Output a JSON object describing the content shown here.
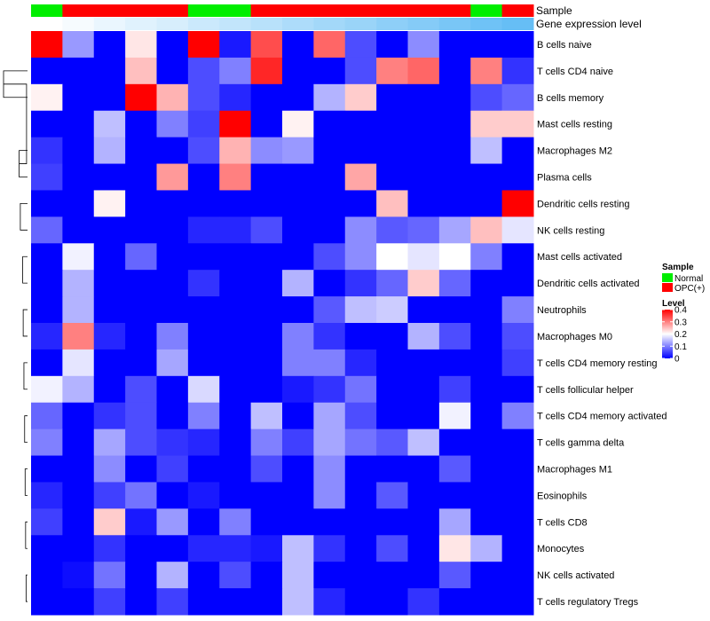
{
  "chart_data": {
    "type": "heatmap",
    "title": "",
    "columns": 16,
    "rows": [
      "B cells naive",
      "T cells CD4 naive",
      "B cells memory",
      "Mast cells resting",
      "Macrophages M2",
      "Plasma cells",
      "Dendritic cells resting",
      "NK cells resting",
      "Mast cells activated",
      "Dendritic cells activated",
      "Neutrophils",
      "Macrophages M0",
      "T cells CD4 memory resting",
      "T cells follicular helper",
      "T cells CD4 memory activated",
      "T cells gamma delta",
      "Macrophages M1",
      "Eosinophils",
      "T cells CD8",
      "Monocytes",
      "NK cells activated",
      "T cells regulatory  Tregs"
    ],
    "values": [
      [
        0.4,
        0.12,
        0.0,
        0.22,
        0.0,
        0.4,
        0.02,
        0.34,
        0.0,
        0.32,
        0.06,
        0.0,
        0.11,
        0.0,
        0.0,
        0.0
      ],
      [
        0.0,
        0.0,
        0.0,
        0.25,
        0.0,
        0.06,
        0.1,
        0.37,
        0.0,
        0.0,
        0.06,
        0.3,
        0.32,
        0.0,
        0.3,
        0.04
      ],
      [
        0.21,
        0.0,
        0.0,
        0.4,
        0.26,
        0.06,
        0.03,
        0.0,
        0.0,
        0.14,
        0.24,
        0.0,
        0.0,
        0.0,
        0.06,
        0.08
      ],
      [
        0.0,
        0.0,
        0.15,
        0.0,
        0.1,
        0.05,
        0.4,
        0.0,
        0.21,
        0.0,
        0.0,
        0.0,
        0.0,
        0.0,
        0.24,
        0.24
      ],
      [
        0.04,
        0.0,
        0.14,
        0.0,
        0.0,
        0.06,
        0.26,
        0.11,
        0.12,
        0.0,
        0.0,
        0.0,
        0.0,
        0.0,
        0.15,
        0.0
      ],
      [
        0.05,
        0.0,
        0.0,
        0.0,
        0.28,
        0.0,
        0.3,
        0.0,
        0.0,
        0.0,
        0.27,
        0.0,
        0.0,
        0.0,
        0.0,
        0.0
      ],
      [
        0.0,
        0.0,
        0.21,
        0.0,
        0.0,
        0.0,
        0.0,
        0.0,
        0.0,
        0.0,
        0.0,
        0.25,
        0.0,
        0.0,
        0.0,
        0.4
      ],
      [
        0.08,
        0.0,
        0.0,
        0.0,
        0.0,
        0.03,
        0.03,
        0.06,
        0.0,
        0.0,
        0.11,
        0.07,
        0.08,
        0.13,
        0.25,
        0.18
      ],
      [
        0.0,
        0.19,
        0.0,
        0.08,
        0.0,
        0.0,
        0.0,
        0.0,
        0.0,
        0.06,
        0.11,
        0.2,
        0.18,
        0.2,
        0.1,
        0.0
      ],
      [
        0.0,
        0.14,
        0.0,
        0.0,
        0.0,
        0.04,
        0.0,
        0.0,
        0.14,
        0.0,
        0.04,
        0.08,
        0.24,
        0.08,
        0.0,
        0.0
      ],
      [
        0.0,
        0.14,
        0.0,
        0.0,
        0.0,
        0.0,
        0.0,
        0.0,
        0.0,
        0.07,
        0.15,
        0.16,
        0.0,
        0.0,
        0.0,
        0.1
      ],
      [
        0.03,
        0.3,
        0.03,
        0.0,
        0.1,
        0.0,
        0.0,
        0.0,
        0.1,
        0.04,
        0.0,
        0.0,
        0.14,
        0.06,
        0.0,
        0.06
      ],
      [
        0.0,
        0.18,
        0.0,
        0.0,
        0.13,
        0.0,
        0.0,
        0.0,
        0.1,
        0.1,
        0.03,
        0.0,
        0.0,
        0.0,
        0.0,
        0.05
      ],
      [
        0.19,
        0.14,
        0.0,
        0.06,
        0.0,
        0.17,
        0.0,
        0.0,
        0.02,
        0.04,
        0.09,
        0.0,
        0.0,
        0.05,
        0.0,
        0.0
      ],
      [
        0.08,
        0.0,
        0.04,
        0.06,
        0.0,
        0.1,
        0.0,
        0.15,
        0.0,
        0.13,
        0.06,
        0.0,
        0.0,
        0.19,
        0.0,
        0.1
      ],
      [
        0.1,
        0.0,
        0.13,
        0.06,
        0.04,
        0.03,
        0.0,
        0.1,
        0.05,
        0.13,
        0.09,
        0.07,
        0.15,
        0.0,
        0.0,
        0.0
      ],
      [
        0.0,
        0.0,
        0.11,
        0.0,
        0.05,
        0.0,
        0.0,
        0.06,
        0.0,
        0.11,
        0.0,
        0.0,
        0.0,
        0.07,
        0.0,
        0.0
      ],
      [
        0.03,
        0.0,
        0.05,
        0.09,
        0.0,
        0.02,
        0.0,
        0.0,
        0.0,
        0.11,
        0.0,
        0.07,
        0.0,
        0.0,
        0.0,
        0.0
      ],
      [
        0.05,
        0.0,
        0.24,
        0.02,
        0.12,
        0.0,
        0.1,
        0.0,
        0.0,
        0.0,
        0.0,
        0.0,
        0.0,
        0.13,
        0.0,
        0.0
      ],
      [
        0.0,
        0.0,
        0.04,
        0.0,
        0.0,
        0.03,
        0.03,
        0.02,
        0.15,
        0.04,
        0.0,
        0.06,
        0.0,
        0.22,
        0.14,
        0.0
      ],
      [
        0.0,
        0.01,
        0.09,
        0.0,
        0.14,
        0.0,
        0.06,
        0.0,
        0.15,
        0.0,
        0.0,
        0.0,
        0.0,
        0.07,
        0.0,
        0.0
      ],
      [
        0.0,
        0.0,
        0.05,
        0.0,
        0.05,
        0.0,
        0.0,
        0.0,
        0.15,
        0.03,
        0.0,
        0.0,
        0.04,
        0.0,
        0.0,
        0.0
      ]
    ],
    "sample_annotation": {
      "label": "Sample",
      "groups": [
        "Normal",
        "OPC(+)",
        "OPC(+)",
        "OPC(+)",
        "OPC(+)",
        "Normal",
        "Normal",
        "OPC(+)",
        "OPC(+)",
        "OPC(+)",
        "OPC(+)",
        "OPC(+)",
        "OPC(+)",
        "OPC(+)",
        "Normal",
        "OPC(+)"
      ]
    },
    "gene_expression_annotation": {
      "label": "Gene expression level",
      "values": [
        0.0,
        0.04,
        0.09,
        0.13,
        0.17,
        0.22,
        0.26,
        0.3,
        0.35,
        0.39,
        0.43,
        0.48,
        0.52,
        0.57,
        0.61,
        0.65
      ]
    },
    "color_scale": {
      "min": 0,
      "max": 0.4,
      "low_color": "#0000ff",
      "mid_color": "#ffffff",
      "high_color": "#ff0000"
    },
    "legend": {
      "sample_title": "Sample",
      "sample_items": [
        {
          "name": "Normal",
          "color": "#00ee00"
        },
        {
          "name": "OPC(+)",
          "color": "#ff0000"
        }
      ],
      "level_title": "Level",
      "level_ticks": [
        "0.4",
        "0.3",
        "0.2",
        "0.1",
        "0"
      ]
    },
    "row_dendrogram": {
      "merges": [
        [
          1,
          2,
          1.0
        ],
        [
          4,
          5,
          0.35
        ],
        [
          6,
          7,
          0.3
        ],
        [
          8,
          9,
          0.2
        ],
        [
          10,
          11,
          0.18
        ],
        [
          12,
          13,
          0.15
        ],
        [
          14,
          15,
          0.12
        ],
        [
          16,
          17,
          0.1
        ],
        [
          18,
          19,
          0.08
        ],
        [
          20,
          21,
          0.06
        ],
        [
          22,
          23,
          0.04
        ]
      ]
    }
  }
}
